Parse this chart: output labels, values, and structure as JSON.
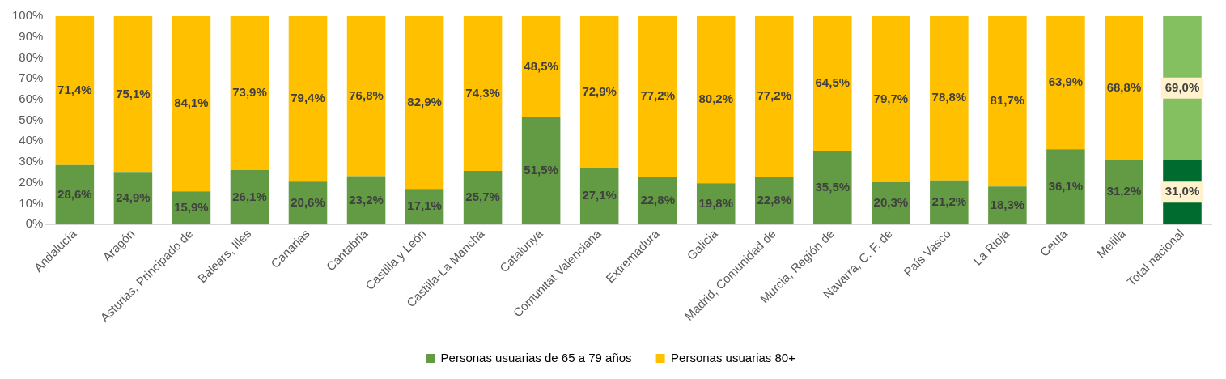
{
  "chart_data": {
    "type": "bar",
    "stacked": true,
    "categories": [
      "Andalucía",
      "Aragón",
      "Asturias, Principado de",
      "Balears, Illes",
      "Canarias",
      "Cantabria",
      "Castilla y León",
      "Castilla-La Mancha",
      "Catalunya",
      "Comunitat Valenciana",
      "Extremadura",
      "Galicia",
      "Madrid, Comunidad de",
      "Murcia, Región de",
      "Navarra, C. F. de",
      "País Vasco",
      "La Rioja",
      "Ceuta",
      "Melilla",
      "Total nacional"
    ],
    "series": [
      {
        "name": "Personas usuarias de 65 a 79 años",
        "color": "#629b43",
        "colors": [
          "#629b43",
          "#629b43",
          "#629b43",
          "#629b43",
          "#629b43",
          "#629b43",
          "#629b43",
          "#629b43",
          "#629b43",
          "#629b43",
          "#629b43",
          "#629b43",
          "#629b43",
          "#629b43",
          "#629b43",
          "#629b43",
          "#629b43",
          "#629b43",
          "#629b43",
          "#006b2e"
        ],
        "values": [
          28.6,
          24.9,
          15.9,
          26.1,
          20.6,
          23.2,
          17.1,
          25.7,
          51.5,
          27.1,
          22.8,
          19.8,
          22.8,
          35.5,
          20.3,
          21.2,
          18.3,
          36.1,
          31.2,
          31.0
        ],
        "value_labels": [
          "28,6%",
          "24,9%",
          "15,9%",
          "26,1%",
          "20,6%",
          "23,2%",
          "17,1%",
          "25,7%",
          "51,5%",
          "27,1%",
          "22,8%",
          "19,8%",
          "22,8%",
          "35,5%",
          "20,3%",
          "21,2%",
          "18,3%",
          "36,1%",
          "31,2%",
          "31,0%"
        ]
      },
      {
        "name": "Personas usuarias 80+",
        "color": "#ffc000",
        "colors": [
          "#ffc000",
          "#ffc000",
          "#ffc000",
          "#ffc000",
          "#ffc000",
          "#ffc000",
          "#ffc000",
          "#ffc000",
          "#ffc000",
          "#ffc000",
          "#ffc000",
          "#ffc000",
          "#ffc000",
          "#ffc000",
          "#ffc000",
          "#ffc000",
          "#ffc000",
          "#ffc000",
          "#ffc000",
          "#84c05f"
        ],
        "values": [
          71.4,
          75.1,
          84.1,
          73.9,
          79.4,
          76.8,
          82.9,
          74.3,
          48.5,
          72.9,
          77.2,
          80.2,
          77.2,
          64.5,
          79.7,
          78.8,
          81.7,
          63.9,
          68.8,
          69.0
        ],
        "value_labels": [
          "71,4%",
          "75,1%",
          "84,1%",
          "73,9%",
          "79,4%",
          "76,8%",
          "82,9%",
          "74,3%",
          "48,5%",
          "72,9%",
          "77,2%",
          "80,2%",
          "77,2%",
          "64,5%",
          "79,7%",
          "78,8%",
          "81,7%",
          "63,9%",
          "68,8%",
          "69,0%"
        ]
      }
    ],
    "ylim": [
      0,
      100
    ],
    "yticks": [
      {
        "value": 0,
        "label": "0%"
      },
      {
        "value": 10,
        "label": "10%"
      },
      {
        "value": 20,
        "label": "20%"
      },
      {
        "value": 30,
        "label": "30%"
      },
      {
        "value": 40,
        "label": "40%"
      },
      {
        "value": 50,
        "label": "50%"
      },
      {
        "value": 60,
        "label": "60%"
      },
      {
        "value": 70,
        "label": "70%"
      },
      {
        "value": 80,
        "label": "80%"
      },
      {
        "value": 90,
        "label": "90%"
      },
      {
        "value": 100,
        "label": "100%"
      }
    ],
    "grid": false,
    "legend": "bottom"
  }
}
